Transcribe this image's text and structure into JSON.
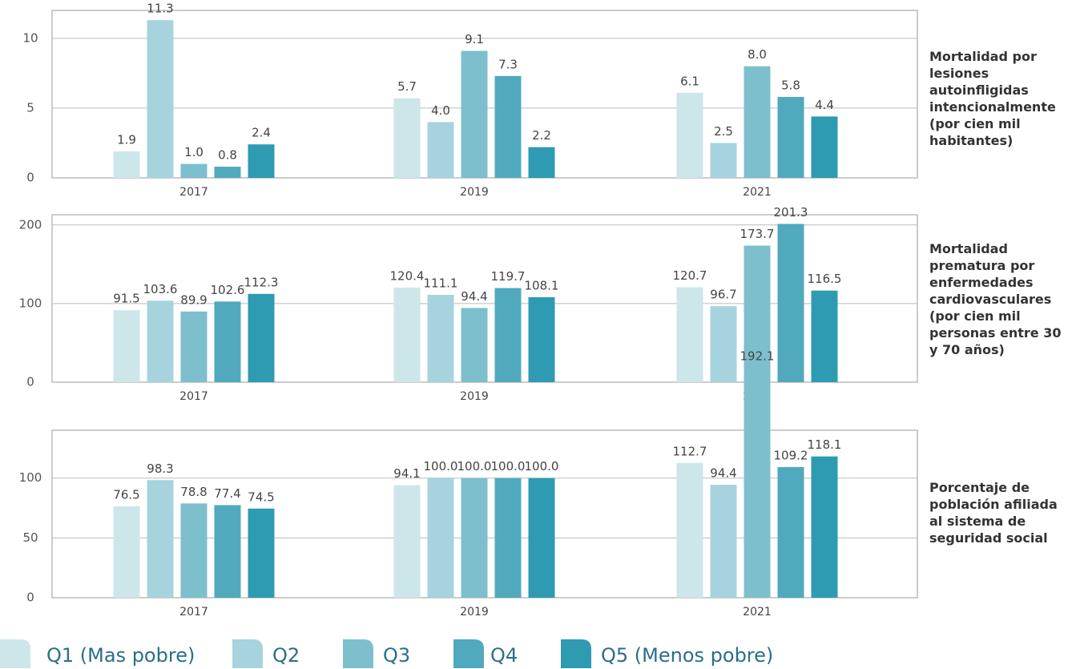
{
  "chart_data": [
    {
      "type": "bar",
      "title": "Mortalidad por lesiones autoinfligidas intencionalmente (por cien mil habitantes)",
      "categories": [
        "2017",
        "2019",
        "2021"
      ],
      "ylim": [
        0,
        12
      ],
      "yticks": [
        0,
        5,
        10
      ],
      "grid": true,
      "series": [
        {
          "name": "Q1 (Mas pobre)",
          "color": "#cde6ea",
          "values": [
            1.9,
            5.7,
            6.1
          ],
          "value_labels": [
            "1.9",
            "5.7",
            "6.1"
          ]
        },
        {
          "name": "Q2",
          "color": "#a6d3de",
          "values": [
            11.3,
            4.0,
            2.5
          ],
          "value_labels": [
            "11.3",
            "4.0",
            "2.5"
          ]
        },
        {
          "name": "Q3",
          "color": "#7dbfcc",
          "values": [
            1.0,
            9.1,
            8.0
          ],
          "value_labels": [
            "1.0",
            "9.1",
            "8.0"
          ]
        },
        {
          "name": "Q4",
          "color": "#50a9bd",
          "values": [
            0.8,
            7.3,
            5.8
          ],
          "value_labels": [
            "0.8",
            "7.3",
            "5.8"
          ]
        },
        {
          "name": "Q5 (Menos pobre)",
          "color": "#2e9bb3",
          "values": [
            2.4,
            2.2,
            4.4
          ],
          "value_labels": [
            "2.4",
            "2.2",
            "4.4"
          ]
        }
      ]
    },
    {
      "type": "bar",
      "title": "Mortalidad prematura por enfermedades cardiovasculares (por cien mil personas entre 30 y 70 años)",
      "categories": [
        "2017",
        "2019",
        "2021"
      ],
      "ylim": [
        0,
        213
      ],
      "yticks": [
        0,
        100,
        200
      ],
      "grid": true,
      "series": [
        {
          "name": "Q1 (Mas pobre)",
          "color": "#cde6ea",
          "values": [
            91.5,
            120.4,
            120.7
          ]
        },
        {
          "name": "Q2",
          "color": "#a6d3de",
          "values": [
            103.6,
            111.1,
            96.7
          ]
        },
        {
          "name": "Q3",
          "color": "#7dbfcc",
          "values": [
            89.9,
            94.4,
            173.7
          ]
        },
        {
          "name": "Q4",
          "color": "#50a9bd",
          "values": [
            102.6,
            119.7,
            201.3
          ]
        },
        {
          "name": "Q5 (Menos pobre)",
          "color": "#2e9bb3",
          "values": [
            112.3,
            108.1,
            116.5
          ]
        }
      ]
    },
    {
      "type": "bar",
      "title": "Porcentaje de población afiliada al sistema de seguridad social",
      "categories": [
        "2017",
        "2019",
        "2021"
      ],
      "ylim": [
        0,
        140
      ],
      "yticks": [
        0,
        50,
        100
      ],
      "grid": true,
      "series": [
        {
          "name": "Q1 (Mas pobre)",
          "color": "#cde6ea",
          "values": [
            76.5,
            94.1,
            112.7
          ]
        },
        {
          "name": "Q2",
          "color": "#a6d3de",
          "values": [
            98.3,
            100,
            94.4
          ],
          "value_labels": [
            "98.3",
            "100.0",
            "94.4"
          ]
        },
        {
          "name": "Q3",
          "color": "#7dbfcc",
          "values": [
            78.8,
            100,
            192.1
          ],
          "value_labels": [
            "78.8",
            "100.0",
            "192.1"
          ]
        },
        {
          "name": "Q4",
          "color": "#50a9bd",
          "values": [
            77.4,
            100,
            109.2
          ],
          "value_labels": [
            "77.4",
            "100.0",
            "109.2"
          ]
        },
        {
          "name": "Q5 (Menos pobre)",
          "color": "#2e9bb3",
          "values": [
            74.5,
            100,
            118.1
          ],
          "value_labels": [
            "74.5",
            "100.0",
            "118.1"
          ]
        }
      ]
    }
  ]
}
